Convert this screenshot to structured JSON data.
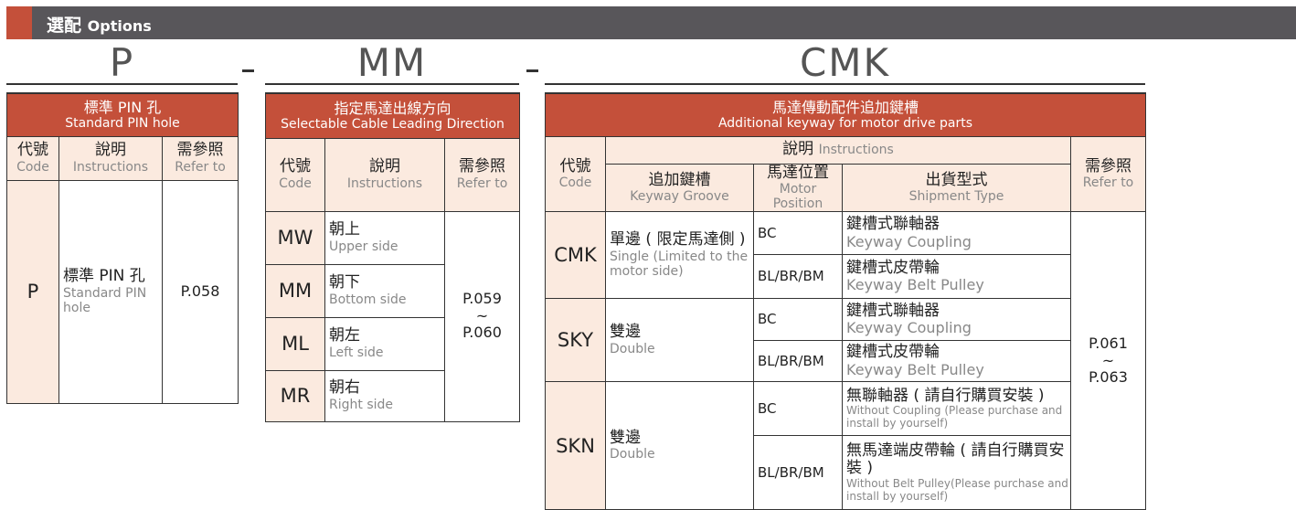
{
  "header": {
    "title_zh": "選配",
    "title_en": "Options"
  },
  "codes": {
    "p": "P",
    "mm": "MM",
    "cmk": "CMK",
    "separator": "-"
  },
  "common": {
    "code_zh": "代號",
    "code_en": "Code",
    "instr_zh": "說明",
    "instr_en": "Instructions",
    "ref_zh": "需參照",
    "ref_en": "Refer to"
  },
  "p_table": {
    "title_zh": "標準 PIN 孔",
    "title_en": "Standard PIN hole",
    "rows": [
      {
        "code": "P",
        "zh": "標準 PIN 孔",
        "en": "Standard PIN hole",
        "ref": "P.058"
      }
    ]
  },
  "mm_table": {
    "title_zh": "指定馬達出線方向",
    "title_en": "Selectable Cable Leading Direction",
    "ref": [
      "P.059",
      "~",
      "P.060"
    ],
    "rows": [
      {
        "code": "MW",
        "zh": "朝上",
        "en": "Upper side"
      },
      {
        "code": "MM",
        "zh": "朝下",
        "en": "Bottom side"
      },
      {
        "code": "ML",
        "zh": "朝左",
        "en": "Left side"
      },
      {
        "code": "MR",
        "zh": "朝右",
        "en": "Right side"
      }
    ]
  },
  "cmk_table": {
    "title_zh": "馬達傳動配件追加鍵槽",
    "title_en": "Additional keyway for motor drive parts",
    "sub": {
      "groove_zh": "追加鍵槽",
      "groove_en": "Keyway Groove",
      "pos_zh": "馬達位置",
      "pos_en": "Motor Position",
      "ship_zh": "出貨型式",
      "ship_en": "Shipment Type"
    },
    "ref": [
      "P.061",
      "~",
      "P.063"
    ],
    "groups": [
      {
        "code": "CMK",
        "zh": "單邊 ( 限定馬達側 )",
        "en": "Single (Limited to the motor side)",
        "rows": [
          {
            "pos": "BC",
            "zh": "鍵槽式聯軸器",
            "en": "Keyway Coupling"
          },
          {
            "pos": "BL/BR/BM",
            "zh": "鍵槽式皮帶輪",
            "en": "Keyway Belt Pulley"
          }
        ]
      },
      {
        "code": "SKY",
        "zh": "雙邊",
        "en": "Double",
        "rows": [
          {
            "pos": "BC",
            "zh": "鍵槽式聯軸器",
            "en": "Keyway Coupling"
          },
          {
            "pos": "BL/BR/BM",
            "zh": "鍵槽式皮帶輪",
            "en": "Keyway Belt Pulley"
          }
        ]
      },
      {
        "code": "SKN",
        "zh": "雙邊",
        "en": "Double",
        "rows": [
          {
            "pos": "BC",
            "zh": "無聯軸器 ( 請自行購買安裝 )",
            "en": "Without Coupling (Please purchase and install by yourself)"
          },
          {
            "pos": "BL/BR/BM",
            "zh": "無馬達端皮帶輪 ( 請自行購買安裝 )",
            "en": "Without Belt Pulley(Please purchase and install by yourself)"
          }
        ]
      }
    ]
  },
  "colors": {
    "accent": "#c4503a",
    "bar": "#58565a",
    "header_bg": "#fbeadf"
  }
}
